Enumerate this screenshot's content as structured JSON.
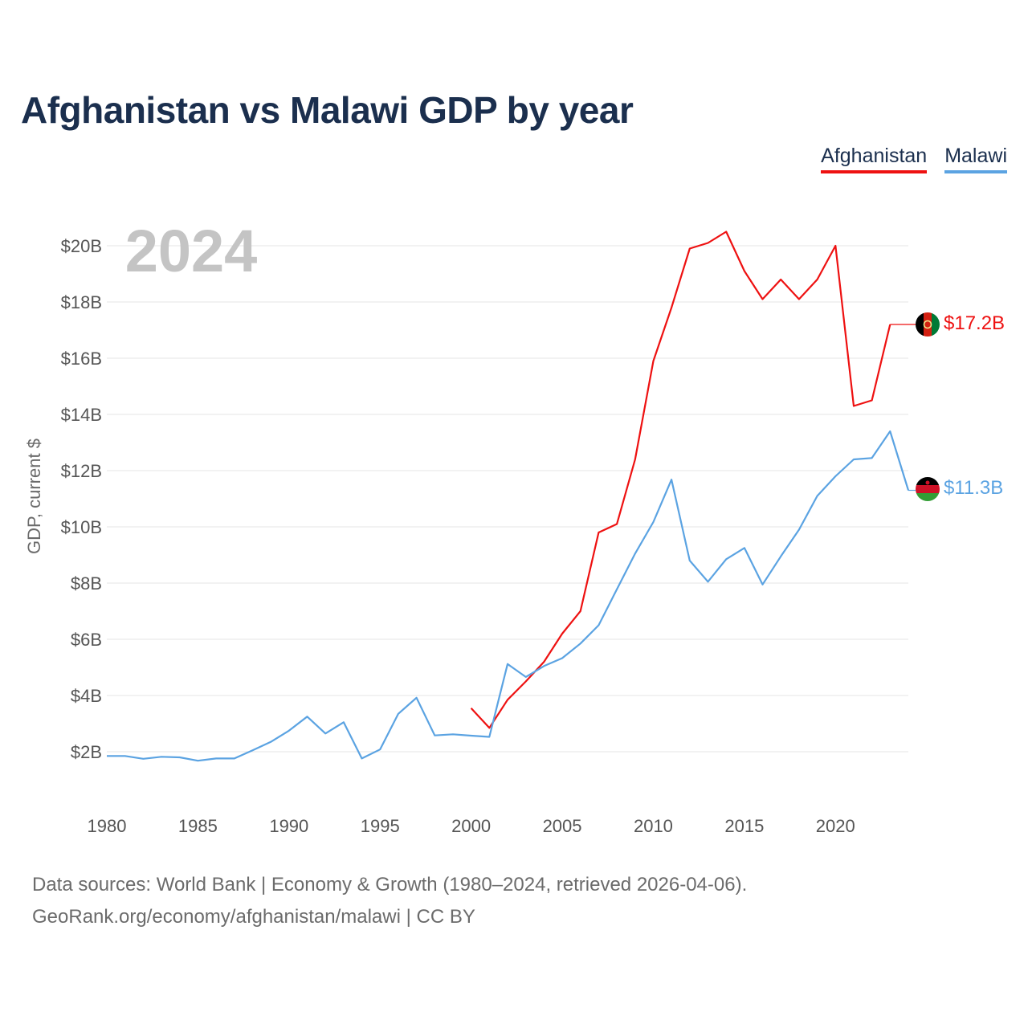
{
  "title": "Afghanistan vs Malawi GDP by year",
  "legend": {
    "afghanistan": "Afghanistan",
    "malawi": "Malawi"
  },
  "colors": {
    "afghanistan": "#ee1111",
    "malawi": "#5ba3e2",
    "title": "#1b2f4e"
  },
  "source": {
    "line1": "Data sources: World Bank | Economy & Growth (1980–2024, retrieved 2026-04-06).",
    "line2": "GeoRank.org/economy/afghanistan/malawi | CC BY"
  },
  "chart_data": {
    "type": "line",
    "title": "Afghanistan vs Malawi GDP by year",
    "year_label": "2024",
    "ylabel": "GDP, current $",
    "xlabel": "",
    "xlim": [
      1980,
      2024
    ],
    "ylim": [
      0,
      21
    ],
    "x_ticks": [
      1980,
      1985,
      1990,
      1995,
      2000,
      2005,
      2010,
      2015,
      2020
    ],
    "x_tick_labels": [
      "1980",
      "1985",
      "1990",
      "1995",
      "2000",
      "2005",
      "2010",
      "2015",
      "2020"
    ],
    "y_ticks": [
      2,
      4,
      6,
      8,
      10,
      12,
      14,
      16,
      18,
      20
    ],
    "y_tick_labels": [
      "$2B",
      "$4B",
      "$6B",
      "$8B",
      "$10B",
      "$12B",
      "$14B",
      "$16B",
      "$18B",
      "$20B"
    ],
    "grid": true,
    "legend_position": "top-right",
    "series": [
      {
        "name": "Afghanistan",
        "color": "#ee1111",
        "end_label": "$17.2B",
        "end_value": 17.2,
        "x": [
          2000,
          2001,
          2002,
          2003,
          2004,
          2005,
          2006,
          2007,
          2008,
          2009,
          2010,
          2011,
          2012,
          2013,
          2014,
          2015,
          2016,
          2017,
          2018,
          2019,
          2020,
          2021,
          2022,
          2023
        ],
        "values": [
          3.55,
          2.85,
          3.85,
          4.5,
          5.2,
          6.2,
          7.0,
          9.8,
          10.1,
          12.4,
          15.9,
          17.8,
          19.9,
          20.1,
          20.5,
          19.1,
          18.1,
          18.8,
          18.1,
          18.8,
          20.0,
          14.3,
          14.5,
          17.2
        ]
      },
      {
        "name": "Malawi",
        "color": "#5ba3e2",
        "end_label": "$11.3B",
        "end_value": 11.3,
        "x": [
          1980,
          1981,
          1982,
          1983,
          1984,
          1985,
          1986,
          1987,
          1988,
          1989,
          1990,
          1991,
          1992,
          1993,
          1994,
          1995,
          1996,
          1997,
          1998,
          1999,
          2000,
          2001,
          2002,
          2003,
          2004,
          2005,
          2006,
          2007,
          2008,
          2009,
          2010,
          2011,
          2012,
          2013,
          2014,
          2015,
          2016,
          2017,
          2018,
          2019,
          2020,
          2021,
          2022,
          2023,
          2024
        ],
        "values": [
          1.85,
          1.85,
          1.75,
          1.82,
          1.8,
          1.68,
          1.76,
          1.76,
          2.05,
          2.35,
          2.75,
          3.25,
          2.65,
          3.05,
          1.76,
          2.08,
          3.35,
          3.92,
          2.58,
          2.62,
          2.57,
          2.53,
          5.12,
          4.66,
          5.05,
          5.33,
          5.85,
          6.5,
          7.78,
          9.05,
          10.17,
          11.68,
          8.8,
          8.05,
          8.85,
          9.25,
          7.95,
          8.95,
          9.9,
          11.1,
          11.8,
          12.4,
          12.45,
          13.4,
          11.3
        ]
      }
    ]
  }
}
